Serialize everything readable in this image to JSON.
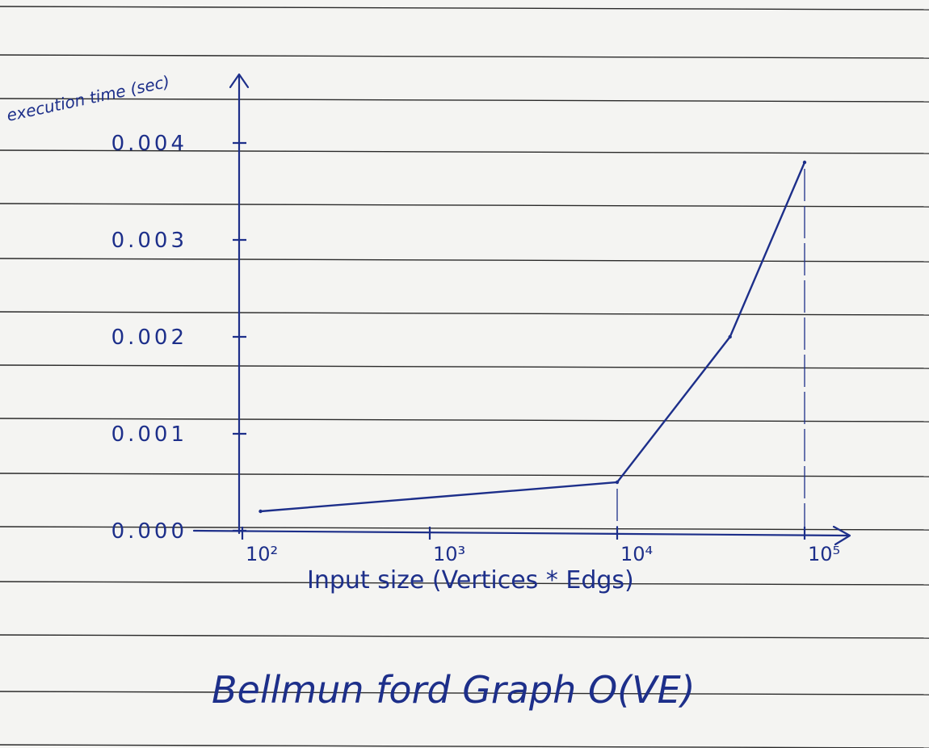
{
  "chart_data": {
    "type": "line",
    "title": "Bellmun ford Graph O(VE)",
    "xlabel": "Input size (Vertices * Edgs)",
    "ylabel": "execution time (sec)",
    "x_scale": "log",
    "x_ticks": [
      "10²",
      "10³",
      "10⁴",
      "10⁵"
    ],
    "y_ticks": [
      "0.000",
      "0.001",
      "0.002",
      "0.003",
      "0.004"
    ],
    "xlim": [
      100,
      200000
    ],
    "ylim": [
      0,
      0.0042
    ],
    "series": [
      {
        "x": [
          125,
          10000,
          40000,
          100000
        ],
        "y": [
          0.0002,
          0.0005,
          0.002,
          0.0038
        ]
      }
    ],
    "grid": false,
    "line_color": "#1d2f8a"
  }
}
